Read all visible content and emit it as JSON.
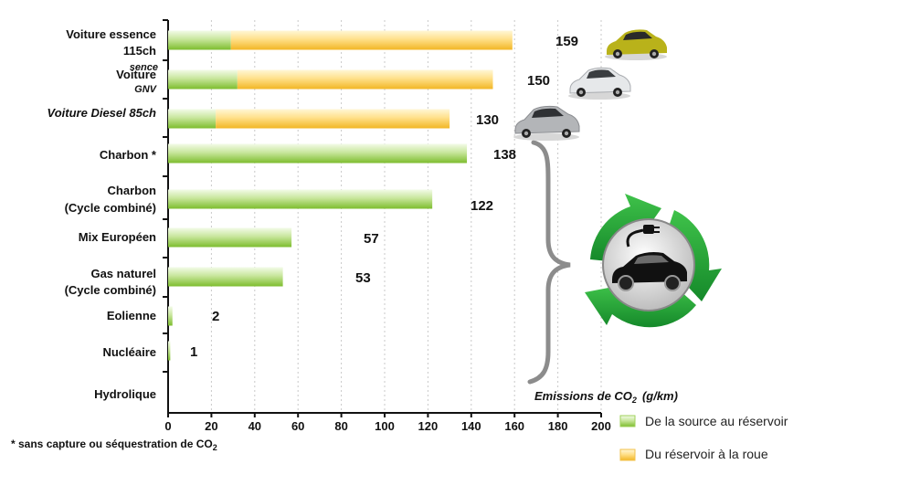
{
  "chart_data": {
    "type": "bar",
    "stacked": true,
    "orientation": "horizontal",
    "categories": [
      "Voiture essence 115ch",
      "Voiture GNV",
      "Voiture Diesel 85ch",
      "Charbon *",
      "Charbon (Cycle combiné)",
      "Mix Européen",
      "Gas naturel (Cycle combiné)",
      "Eolienne",
      "Nucléaire",
      "Hydrolique"
    ],
    "category_label_lines": [
      [
        "Voiture essence",
        "115ch"
      ],
      [
        "Voiture",
        "GNV"
      ],
      [
        "Voiture Diesel 85ch"
      ],
      [
        "Charbon *"
      ],
      [
        "Charbon",
        "(Cycle combiné)"
      ],
      [
        "Mix Européen"
      ],
      [
        "Gas naturel",
        "(Cycle combiné)"
      ],
      [
        "Eolienne"
      ],
      [
        "Nucléaire"
      ],
      [
        "Hydrolique"
      ]
    ],
    "overlap_label": "sence",
    "series": [
      {
        "name": "De la source au réservoir",
        "color": "#8cc63f",
        "values": [
          29,
          32,
          22,
          138,
          122,
          57,
          53,
          2,
          1,
          0
        ]
      },
      {
        "name": "Du réservoir à la roue",
        "color": "#f5c23a",
        "values": [
          130,
          118,
          108,
          0,
          0,
          0,
          0,
          0,
          0,
          0
        ]
      }
    ],
    "totals": [
      "159",
      "150",
      "130",
      "138",
      "122",
      "57",
      "53",
      "2",
      "1",
      ""
    ],
    "xlim": [
      0,
      200
    ],
    "xticks": [
      "0",
      "20",
      "40",
      "60",
      "80",
      "100",
      "120",
      "140",
      "160",
      "180",
      "200"
    ],
    "xlabel": "Emissions de CO2  (g/km)",
    "xlabel_main": "Emissions de CO",
    "xlabel_sub": "2",
    "xlabel_unit": "(g/km)",
    "grid": "vertical dotted",
    "legend_position": "bottom-right",
    "footnote_main": "* sans capture ou séquestration de CO",
    "footnote_sub": "2"
  }
}
